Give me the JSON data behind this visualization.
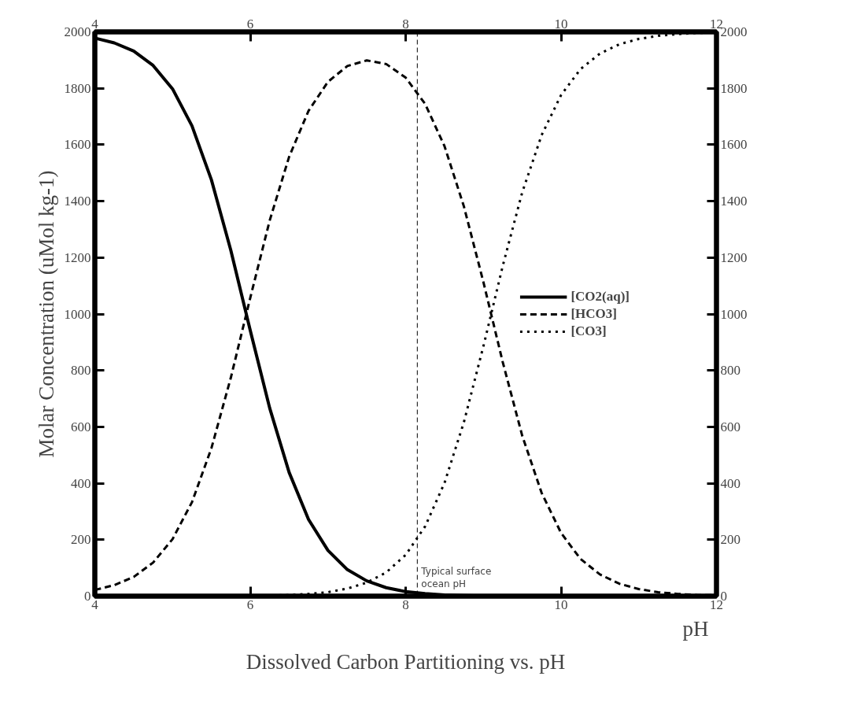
{
  "chart_data": {
    "type": "line",
    "title": "Dissolved Carbon Partitioning vs. pH",
    "xlabel": "pH",
    "ylabel": "Molar Concentration (uMol kg-1)",
    "x": [
      4,
      4.25,
      4.5,
      4.75,
      5,
      5.25,
      5.5,
      5.75,
      6,
      6.25,
      6.5,
      6.75,
      7,
      7.25,
      7.5,
      7.75,
      8,
      8.25,
      8.5,
      8.75,
      9,
      9.25,
      9.5,
      9.75,
      10,
      10.25,
      10.5,
      10.75,
      11,
      11.25,
      11.5,
      11.75,
      12
    ],
    "series": [
      {
        "name": "[CO2(aq)]",
        "color": "#000000",
        "line_style": "solid",
        "values": [
          1978,
          1961,
          1932,
          1881,
          1798,
          1667,
          1476,
          1226,
          942,
          667,
          439,
          272,
          162,
          94,
          54,
          30,
          16,
          9,
          4,
          2,
          1,
          0,
          0,
          0,
          0,
          0,
          0,
          0,
          0,
          0,
          0,
          0,
          0
        ]
      },
      {
        "name": "[HCO3]",
        "color": "#000000",
        "line_style": "dashed",
        "values": [
          22,
          39,
          68,
          119,
          202,
          333,
          524,
          774,
          1057,
          1331,
          1557,
          1720,
          1823,
          1879,
          1899,
          1886,
          1838,
          1745,
          1595,
          1381,
          1114,
          829,
          569,
          366,
          224,
          132,
          77,
          44,
          25,
          14,
          8,
          4,
          3
        ]
      },
      {
        "name": "[CO3]",
        "color": "#000000",
        "line_style": "dotted",
        "values": [
          0,
          0,
          0,
          0,
          0,
          0,
          0,
          0,
          1,
          2,
          4,
          8,
          14,
          27,
          48,
          84,
          146,
          247,
          401,
          617,
          885,
          1171,
          1431,
          1634,
          1776,
          1868,
          1923,
          1956,
          1975,
          1986,
          1992,
          1996,
          1998
        ]
      }
    ],
    "xlim": [
      4,
      12
    ],
    "xticks": [
      4,
      6,
      8,
      10,
      12
    ],
    "x2lim": [
      4,
      12
    ],
    "x2ticks": [
      4,
      6,
      8,
      10,
      12
    ],
    "ylim": [
      0,
      2000
    ],
    "yticks": [
      0,
      200,
      400,
      600,
      800,
      1000,
      1200,
      1400,
      1600,
      1800,
      2000
    ],
    "y2lim": [
      0,
      2000
    ],
    "y2ticks": [
      0,
      200,
      400,
      600,
      800,
      1000,
      1200,
      1400,
      1600,
      1800,
      2000
    ],
    "ref_lines": [
      {
        "axis": "x",
        "value": 8.15,
        "label": "Typical surface ocean pH",
        "line_style": "dashed",
        "color": "#000000"
      }
    ],
    "legend": "right",
    "grid": false,
    "marker": "none"
  }
}
